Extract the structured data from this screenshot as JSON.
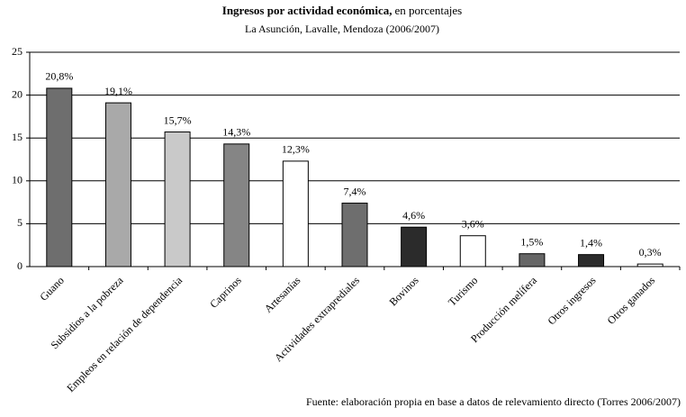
{
  "chart_data": {
    "type": "bar",
    "title": "Ingresos por actividad económica,",
    "title_note": "en porcentajes",
    "subtitle": "La Asunción, Lavalle, Mendoza (2006/2007)",
    "source": "Fuente: elaboración propia en base a datos de relevamiento directo (Torres 2006/2007)",
    "categories": [
      "Guano",
      "Subsidios a la pobreza",
      "Empleos en relación de dependencia",
      "Caprinos",
      "Artesanías",
      "Actividades extraprediales",
      "Bovinos",
      "Turismo",
      "Producción melífera",
      "Otros ingresos",
      "Otros ganados"
    ],
    "values": [
      20.8,
      19.1,
      15.7,
      14.3,
      12.3,
      7.4,
      4.6,
      3.6,
      1.5,
      1.4,
      0.3
    ],
    "value_labels": [
      "20,8%",
      "19,1%",
      "15,7%",
      "14,3%",
      "12,3%",
      "7,4%",
      "4,6%",
      "3,6%",
      "1,5%",
      "1,4%",
      "0,3%"
    ],
    "colors": [
      "#6e6e6e",
      "#a9a9a9",
      "#c9c9c9",
      "#858585",
      "#ffffff",
      "#6e6e6e",
      "#2b2b2b",
      "#ffffff",
      "#666666",
      "#2b2b2b",
      "#ffffff"
    ],
    "ylim": [
      0,
      25
    ],
    "yticks": [
      0,
      5,
      10,
      15,
      20,
      25
    ],
    "grid": true
  }
}
